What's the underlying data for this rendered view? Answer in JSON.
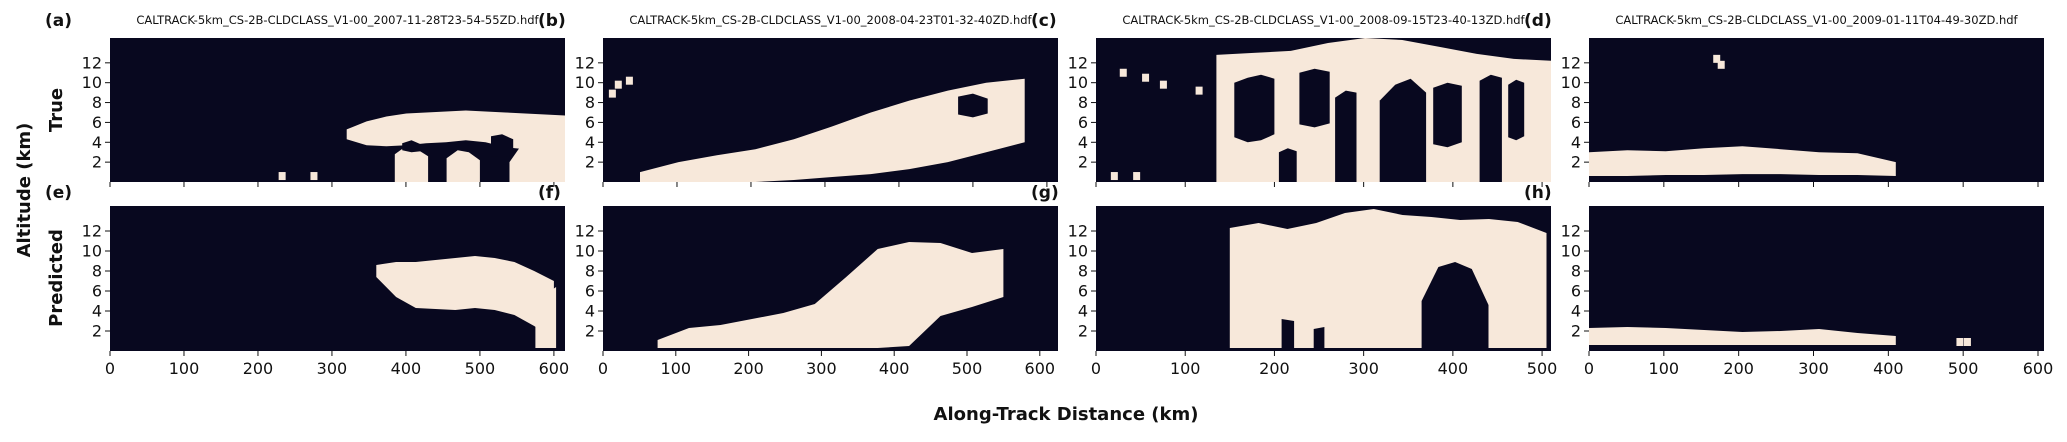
{
  "figure": {
    "xlabel": "Along-Track Distance (km)",
    "ylabel": "Altitude (km)",
    "row_labels": [
      "True",
      "Predicted"
    ]
  },
  "colors": {
    "cloud": "#f7e8da",
    "clear": "#08081f"
  },
  "chart_data": [
    {
      "type": "heatmap",
      "id": "a",
      "letter": "(a)",
      "row": "True",
      "title": "CALTRACK-5km_CS-2B-CLDCLASS_V1-00_2007-11-28T23-54-55ZD.hdf",
      "xlim": [
        0,
        615
      ],
      "ylim": [
        0,
        14.5
      ],
      "xticks": [
        0,
        100,
        200,
        300,
        400,
        500,
        600
      ],
      "yticks": [
        2,
        4,
        6,
        8,
        10,
        12
      ],
      "show_xticks": false,
      "clouds": [
        {
          "x": [
            320,
            615
          ],
          "base": [
            4.3,
            3.7,
            3.6,
            3.7,
            3.9,
            4.0,
            4.2,
            4.0,
            3.5,
            3.3,
            3.5,
            3.8
          ],
          "top": [
            5.3,
            6.1,
            6.6,
            6.9,
            7.0,
            7.1,
            7.2,
            7.1,
            7.0,
            6.9,
            6.8,
            6.7
          ]
        },
        {
          "x": [
            385,
            430
          ],
          "base": [
            0.0,
            0.0,
            0.0,
            0.0
          ],
          "top": [
            2.8,
            3.6,
            3.3,
            2.6
          ]
        },
        {
          "x": [
            455,
            500
          ],
          "base": [
            0.0,
            0.0,
            0.0,
            0.0
          ],
          "top": [
            2.4,
            3.2,
            3.0,
            2.2
          ]
        },
        {
          "x": [
            540,
            615
          ],
          "base": [
            0.0,
            0.0,
            0.0,
            0.0,
            0.0
          ],
          "top": [
            2.0,
            4.0,
            5.0,
            5.5,
            6.0
          ]
        }
      ],
      "holes": [
        {
          "x": [
            395,
            420
          ],
          "base": [
            3.2,
            3.0,
            3.1
          ],
          "top": [
            3.9,
            4.2,
            3.8
          ]
        },
        {
          "x": [
            515,
            545
          ],
          "base": [
            2.6,
            2.5,
            2.7
          ],
          "top": [
            4.6,
            4.8,
            4.3
          ]
        }
      ],
      "specks": [
        {
          "x": 232,
          "y": 0.6
        },
        {
          "x": 275,
          "y": 0.6
        }
      ]
    },
    {
      "type": "heatmap",
      "id": "b",
      "letter": "(b)",
      "row": "True",
      "title": "CALTRACK-5km_CS-2B-CLDCLASS_V1-00_2008-04-23T01-32-40ZD.hdf",
      "xlim": [
        0,
        615
      ],
      "ylim": [
        0,
        14.5
      ],
      "xticks": [
        0,
        100,
        200,
        300,
        400,
        500,
        600
      ],
      "yticks": [
        2,
        4,
        6,
        8,
        10,
        12
      ],
      "show_xticks": false,
      "clouds": [
        {
          "x": [
            50,
            570
          ],
          "base": [
            0.0,
            0.0,
            0.0,
            0.0,
            0.2,
            0.5,
            0.8,
            1.3,
            2.0,
            3.0,
            4.0
          ],
          "top": [
            1.0,
            2.0,
            2.7,
            3.3,
            4.3,
            5.6,
            7.0,
            8.2,
            9.2,
            10.0,
            10.4
          ]
        }
      ],
      "holes": [
        {
          "x": [
            480,
            520
          ],
          "base": [
            6.8,
            6.5,
            6.9
          ],
          "top": [
            8.6,
            8.9,
            8.4
          ]
        }
      ],
      "specks": [
        {
          "x": 20,
          "y": 9.8
        },
        {
          "x": 35,
          "y": 10.2
        },
        {
          "x": 12,
          "y": 8.9
        }
      ]
    },
    {
      "type": "heatmap",
      "id": "c",
      "letter": "(c)",
      "row": "True",
      "title": "CALTRACK-5km_CS-2B-CLDCLASS_V1-00_2008-09-15T23-40-13ZD.hdf",
      "xlim": [
        0,
        510
      ],
      "ylim": [
        0,
        14.5
      ],
      "xticks": [
        0,
        100,
        200,
        300,
        400,
        500
      ],
      "yticks": [
        2,
        4,
        6,
        8,
        10,
        12
      ],
      "show_xticks": false,
      "clouds": [
        {
          "x": [
            135,
            510
          ],
          "base": [
            0.0,
            0.0,
            0.0,
            0.0,
            0.0,
            0.0,
            0.0,
            0.0,
            0.0,
            0.0
          ],
          "top": [
            12.8,
            13.0,
            13.2,
            14.0,
            14.5,
            14.3,
            13.6,
            12.9,
            12.4,
            12.2
          ]
        }
      ],
      "holes": [
        {
          "x": [
            155,
            200
          ],
          "base": [
            4.5,
            4.0,
            4.2,
            4.8
          ],
          "top": [
            10.0,
            10.5,
            10.8,
            10.4
          ]
        },
        {
          "x": [
            228,
            262
          ],
          "base": [
            5.8,
            5.5,
            5.9
          ],
          "top": [
            11.0,
            11.4,
            11.1
          ]
        },
        {
          "x": [
            268,
            292
          ],
          "base": [
            0.0,
            0.0,
            0.0
          ],
          "top": [
            8.5,
            9.2,
            9.0
          ]
        },
        {
          "x": [
            318,
            370
          ],
          "base": [
            0.0,
            0.0,
            0.0,
            0.0
          ],
          "top": [
            8.2,
            9.8,
            10.4,
            9.0
          ]
        },
        {
          "x": [
            378,
            410
          ],
          "base": [
            3.8,
            3.5,
            4.0
          ],
          "top": [
            9.5,
            10.0,
            9.7
          ]
        },
        {
          "x": [
            430,
            455
          ],
          "base": [
            0.0,
            0.0,
            0.0
          ],
          "top": [
            10.2,
            10.8,
            10.5
          ]
        },
        {
          "x": [
            462,
            480
          ],
          "base": [
            4.5,
            4.2,
            4.6
          ],
          "top": [
            9.8,
            10.3,
            10.0
          ]
        },
        {
          "x": [
            205,
            225
          ],
          "base": [
            0.0,
            0.0,
            0.0
          ],
          "top": [
            3.0,
            3.4,
            3.1
          ]
        }
      ],
      "specks": [
        {
          "x": 30,
          "y": 11.0
        },
        {
          "x": 55,
          "y": 10.5
        },
        {
          "x": 75,
          "y": 9.8
        },
        {
          "x": 115,
          "y": 9.2
        },
        {
          "x": 20,
          "y": 0.6
        },
        {
          "x": 45,
          "y": 0.6
        }
      ]
    },
    {
      "type": "heatmap",
      "id": "d",
      "letter": "(d)",
      "row": "True",
      "title": "CALTRACK-5km_CS-2B-CLDCLASS_V1-00_2009-01-11T04-49-30ZD.hdf",
      "xlim": [
        0,
        608
      ],
      "ylim": [
        0,
        14.5
      ],
      "xticks": [
        0,
        100,
        200,
        300,
        400,
        500,
        600
      ],
      "yticks": [
        2,
        4,
        6,
        8,
        10,
        12
      ],
      "show_xticks": false,
      "clouds": [
        {
          "x": [
            0,
            410
          ],
          "base": [
            0.6,
            0.6,
            0.7,
            0.7,
            0.8,
            0.8,
            0.7,
            0.7,
            0.6
          ],
          "top": [
            3.0,
            3.2,
            3.1,
            3.4,
            3.6,
            3.3,
            3.0,
            2.9,
            2.0
          ]
        }
      ],
      "holes": [],
      "specks": [
        {
          "x": 170,
          "y": 12.4
        },
        {
          "x": 176,
          "y": 11.8
        }
      ]
    },
    {
      "type": "heatmap",
      "id": "e",
      "letter": "(e)",
      "row": "Predicted",
      "title": "",
      "xlim": [
        0,
        615
      ],
      "ylim": [
        0,
        14.5
      ],
      "xticks": [
        0,
        100,
        200,
        300,
        400,
        500,
        600
      ],
      "yticks": [
        2,
        4,
        6,
        8,
        10,
        12
      ],
      "show_xticks": true,
      "clouds": [
        {
          "x": [
            360,
            600
          ],
          "base": [
            7.4,
            5.4,
            4.3,
            4.2,
            4.1,
            4.3,
            4.1,
            3.6,
            2.5,
            1.2
          ],
          "top": [
            8.6,
            8.9,
            8.9,
            9.1,
            9.3,
            9.5,
            9.3,
            8.9,
            8.0,
            7.0
          ]
        },
        {
          "x": [
            575,
            603
          ],
          "base": [
            0.3,
            0.3
          ],
          "top": [
            5.0,
            6.4
          ]
        }
      ],
      "holes": [],
      "specks": []
    },
    {
      "type": "heatmap",
      "id": "f",
      "letter": "(f)",
      "row": "Predicted",
      "title": "",
      "xlim": [
        0,
        625
      ],
      "ylim": [
        0,
        14.5
      ],
      "xticks": [
        0,
        100,
        200,
        300,
        400,
        500,
        600
      ],
      "yticks": [
        2,
        4,
        6,
        8,
        10,
        12
      ],
      "show_xticks": true,
      "clouds": [
        {
          "x": [
            75,
            550
          ],
          "base": [
            0.3,
            0.3,
            0.3,
            0.3,
            0.3,
            0.3,
            0.3,
            0.3,
            0.5,
            3.5,
            4.4,
            5.4
          ],
          "top": [
            1.1,
            2.3,
            2.6,
            3.2,
            3.8,
            4.7,
            7.4,
            10.2,
            10.9,
            10.8,
            9.8,
            10.2
          ]
        }
      ],
      "holes": [],
      "specks": []
    },
    {
      "type": "heatmap",
      "id": "g",
      "letter": "(g)",
      "row": "Predicted",
      "title": "",
      "xlim": [
        0,
        510
      ],
      "ylim": [
        0,
        14.5
      ],
      "xticks": [
        0,
        100,
        200,
        300,
        400,
        500
      ],
      "yticks": [
        2,
        4,
        6,
        8,
        10,
        12
      ],
      "show_xticks": true,
      "clouds": [
        {
          "x": [
            150,
            505
          ],
          "base": [
            0.3,
            0.3,
            0.3,
            0.3,
            0.3,
            0.3,
            0.3,
            0.3,
            0.3,
            0.3,
            0.3,
            0.3
          ],
          "top": [
            12.3,
            12.8,
            12.2,
            12.8,
            13.8,
            14.2,
            13.6,
            13.4,
            13.1,
            13.2,
            12.9,
            11.8
          ]
        }
      ],
      "holes": [
        {
          "x": [
            365,
            440
          ],
          "base": [
            0.0,
            0.0,
            0.0,
            0.0,
            0.0
          ],
          "top": [
            5.0,
            8.4,
            8.9,
            8.2,
            4.6
          ]
        },
        {
          "x": [
            208,
            222
          ],
          "base": [
            0.0,
            0.0
          ],
          "top": [
            3.2,
            3.0
          ]
        },
        {
          "x": [
            244,
            256
          ],
          "base": [
            0.0,
            0.0
          ],
          "top": [
            2.2,
            2.4
          ]
        }
      ],
      "specks": []
    },
    {
      "type": "heatmap",
      "id": "h",
      "letter": "(h)",
      "row": "Predicted",
      "title": "",
      "xlim": [
        0,
        608
      ],
      "ylim": [
        0,
        14.5
      ],
      "xticks": [
        0,
        100,
        200,
        300,
        400,
        500,
        600
      ],
      "yticks": [
        2,
        4,
        6,
        8,
        10,
        12
      ],
      "show_xticks": true,
      "clouds": [
        {
          "x": [
            0,
            410
          ],
          "base": [
            0.6,
            0.6,
            0.6,
            0.6,
            0.6,
            0.6,
            0.6,
            0.6,
            0.6
          ],
          "top": [
            2.3,
            2.4,
            2.3,
            2.1,
            1.9,
            2.0,
            2.2,
            1.8,
            1.5
          ]
        }
      ],
      "holes": [],
      "specks": [
        {
          "x": 495,
          "y": 0.9
        },
        {
          "x": 505,
          "y": 0.9
        }
      ]
    }
  ]
}
